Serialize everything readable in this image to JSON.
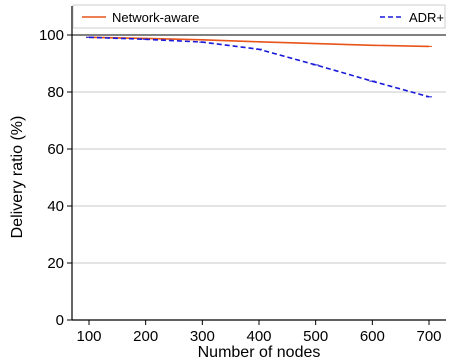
{
  "chart_data": {
    "type": "line",
    "title": "",
    "xlabel": "Number of nodes",
    "ylabel": "Delivery ratio (%)",
    "x": [
      100,
      200,
      300,
      400,
      500,
      600,
      700
    ],
    "x_ticks": [
      "100",
      "200",
      "300",
      "400",
      "500",
      "600",
      "700"
    ],
    "y_ticks": [
      "0",
      "20",
      "40",
      "60",
      "80",
      "100"
    ],
    "xlim": [
      70,
      730
    ],
    "ylim": [
      0,
      100
    ],
    "grid": "horizontal",
    "legend_position": "top",
    "series": [
      {
        "name": "Network-aware",
        "color": "#e8541a",
        "line_style": "solid",
        "values": [
          99.2,
          98.8,
          98.3,
          97.6,
          97.0,
          96.4,
          96.0
        ]
      },
      {
        "name": "ADR+",
        "color": "#1a1adb",
        "line_style": "dashed",
        "values": [
          99.2,
          98.5,
          97.5,
          95.0,
          89.5,
          83.8,
          78.3
        ]
      }
    ]
  }
}
